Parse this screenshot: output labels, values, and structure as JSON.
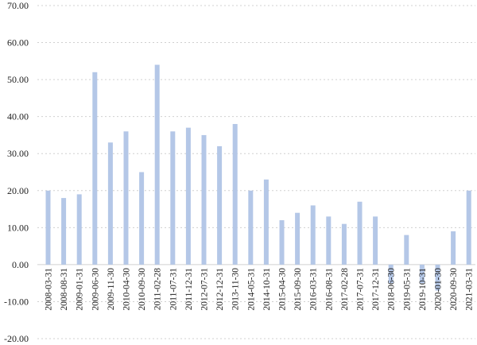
{
  "chart_data": {
    "type": "bar",
    "title": "",
    "xlabel": "",
    "ylabel": "",
    "ylim": [
      -20,
      70
    ],
    "y_ticks": [
      {
        "value": 70,
        "label": "70.00"
      },
      {
        "value": 60,
        "label": "60.00"
      },
      {
        "value": 50,
        "label": "50.00"
      },
      {
        "value": 40,
        "label": "40.00"
      },
      {
        "value": 30,
        "label": "30.00"
      },
      {
        "value": 20,
        "label": "20.00"
      },
      {
        "value": 10,
        "label": "10.00"
      },
      {
        "value": 0,
        "label": "0.00"
      },
      {
        "value": -10,
        "label": "-10.00"
      },
      {
        "value": -20,
        "label": "-20.00"
      }
    ],
    "grid": true,
    "bar_color": "#b4c7e7",
    "categories": [
      "2008-03-31",
      "2008-08-31",
      "2009-01-31",
      "2009-06-30",
      "2009-11-30",
      "2010-04-30",
      "2010-09-30",
      "2011-02-28",
      "2011-07-31",
      "2011-12-31",
      "2012-07-31",
      "2012-12-31",
      "2013-11-30",
      "2014-05-31",
      "2014-10-31",
      "2015-04-30",
      "2015-09-30",
      "2016-03-31",
      "2016-08-31",
      "2017-02-28",
      "2017-07-31",
      "2017-12-31",
      "2018-06-30",
      "2019-05-31",
      "2019-10-31",
      "2020-01-30",
      "2020-09-30",
      "2021-03-31"
    ],
    "values": [
      20,
      18,
      19,
      52,
      33,
      36,
      25,
      54,
      36,
      37,
      35,
      32,
      38,
      20,
      23,
      12,
      14,
      16,
      13,
      11,
      17,
      13,
      -5,
      8,
      -5,
      -7,
      9,
      20
    ]
  }
}
